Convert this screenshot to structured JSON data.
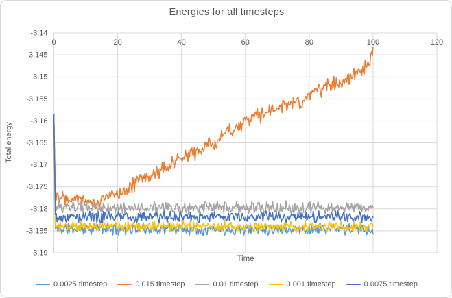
{
  "window": {
    "background": "#ffffff",
    "border_color": "#d7d7d7"
  },
  "chart_data": {
    "type": "line",
    "title": "Energies for all timesteps",
    "xlabel": "Time",
    "ylabel": "Total energy",
    "xlim": [
      0,
      120
    ],
    "ylim": [
      -3.19,
      -3.14
    ],
    "grid": true,
    "legend_position": "bottom",
    "text_color": "#595959",
    "grid_color": "#d9d9d9",
    "x_ticks": [
      {
        "value": 0,
        "label": "0"
      },
      {
        "value": 20,
        "label": "20"
      },
      {
        "value": 40,
        "label": "40"
      },
      {
        "value": 60,
        "label": "60"
      },
      {
        "value": 80,
        "label": "80"
      },
      {
        "value": 100,
        "label": "100"
      },
      {
        "value": 120,
        "label": "120"
      }
    ],
    "y_ticks": [
      {
        "value": -3.14,
        "label": "-3.14"
      },
      {
        "value": -3.145,
        "label": "-3.145"
      },
      {
        "value": -3.15,
        "label": "-3.15"
      },
      {
        "value": -3.155,
        "label": "-3.155"
      },
      {
        "value": -3.16,
        "label": "-3.16"
      },
      {
        "value": -3.165,
        "label": "-3.165"
      },
      {
        "value": -3.17,
        "label": "-3.17"
      },
      {
        "value": -3.175,
        "label": "-3.175"
      },
      {
        "value": -3.18,
        "label": "-3.18"
      },
      {
        "value": -3.185,
        "label": "-3.185"
      },
      {
        "value": -3.19,
        "label": "-3.19"
      }
    ],
    "x_data_start": 0,
    "x_data_end": 100,
    "x_step": 0.25,
    "series": [
      {
        "name": "0.0025 timestep",
        "color": "#5B9BD5",
        "seed": 11,
        "noise_amplitude": 0.0012,
        "keypoints": [
          [
            0,
            -3.1585
          ],
          [
            0.5,
            -3.1846
          ],
          [
            100,
            -3.1846
          ]
        ]
      },
      {
        "name": "0.015 timestep",
        "color": "#ED7D31",
        "seed": 22,
        "noise_amplitude": 0.0016,
        "keypoints": [
          [
            0,
            -3.159
          ],
          [
            0.5,
            -3.1768
          ],
          [
            5,
            -3.1772
          ],
          [
            10,
            -3.1778
          ],
          [
            13,
            -3.1792
          ],
          [
            16,
            -3.1776
          ],
          [
            20,
            -3.1764
          ],
          [
            25,
            -3.1744
          ],
          [
            30,
            -3.1724
          ],
          [
            35,
            -3.1706
          ],
          [
            40,
            -3.1686
          ],
          [
            45,
            -3.1668
          ],
          [
            50,
            -3.1652
          ],
          [
            55,
            -3.162
          ],
          [
            58,
            -3.1612
          ],
          [
            60,
            -3.16
          ],
          [
            65,
            -3.1585
          ],
          [
            70,
            -3.1572
          ],
          [
            75,
            -3.1558
          ],
          [
            78,
            -3.156
          ],
          [
            80,
            -3.1542
          ],
          [
            85,
            -3.1522
          ],
          [
            90,
            -3.1508
          ],
          [
            93,
            -3.15
          ],
          [
            96,
            -3.1492
          ],
          [
            99,
            -3.1472
          ],
          [
            100,
            -3.1432
          ]
        ]
      },
      {
        "name": "0.01 timestep",
        "color": "#A5A5A5",
        "seed": 33,
        "noise_amplitude": 0.0013,
        "keypoints": [
          [
            0,
            -3.159
          ],
          [
            0.5,
            -3.1798
          ],
          [
            100,
            -3.1798
          ]
        ]
      },
      {
        "name": "0.001 timestep",
        "color": "#FFC000",
        "seed": 44,
        "noise_amplitude": 0.0011,
        "keypoints": [
          [
            0,
            -3.159
          ],
          [
            0.5,
            -3.184
          ],
          [
            100,
            -3.184
          ]
        ]
      },
      {
        "name": "0.0075 timestep",
        "color": "#4472C4",
        "seed": 55,
        "noise_amplitude": 0.0012,
        "keypoints": [
          [
            0,
            -3.1585
          ],
          [
            0.5,
            -3.1818
          ],
          [
            100,
            -3.1818
          ]
        ]
      }
    ]
  }
}
